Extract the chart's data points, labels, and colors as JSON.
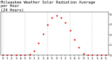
{
  "title": "Milwaukee Weather Solar Radiation Average per Hour (24 Hours)",
  "hours": [
    0,
    1,
    2,
    3,
    4,
    5,
    6,
    7,
    8,
    9,
    10,
    11,
    12,
    13,
    14,
    15,
    16,
    17,
    18,
    19,
    20,
    21,
    22,
    23
  ],
  "solar": [
    0,
    0,
    0,
    0,
    0,
    0,
    8,
    45,
    120,
    210,
    295,
    365,
    390,
    370,
    320,
    240,
    155,
    75,
    15,
    1,
    0,
    0,
    0,
    0
  ],
  "dot_color": "#dd0000",
  "bg_color": "#ffffff",
  "grid_color": "#aaaaaa",
  "tick_color": "#000000",
  "ylim": [
    0,
    420
  ],
  "xlim": [
    -0.5,
    23.5
  ],
  "title_fontsize": 4.0,
  "tick_fontsize": 3.2,
  "dot_size": 2.5,
  "grid_positions": [
    0,
    5,
    10,
    15,
    20
  ],
  "ytick_values": [
    0,
    100,
    200,
    300,
    400
  ],
  "ytick_labels": [
    "0",
    "1",
    "2",
    "3",
    "4"
  ],
  "xtick_positions": [
    0,
    1,
    2,
    3,
    4,
    5,
    6,
    7,
    8,
    9,
    10,
    11,
    12,
    13,
    14,
    15,
    16,
    17,
    18,
    19,
    20,
    21,
    22,
    23
  ],
  "xtick_labels": [
    "0",
    "1",
    "2",
    "3",
    "4",
    "5",
    "0",
    "1",
    "2",
    "3",
    "4",
    "5",
    "0",
    "1",
    "2",
    "3",
    "4",
    "5",
    "0",
    "1",
    "2",
    "3",
    "4",
    "5"
  ]
}
